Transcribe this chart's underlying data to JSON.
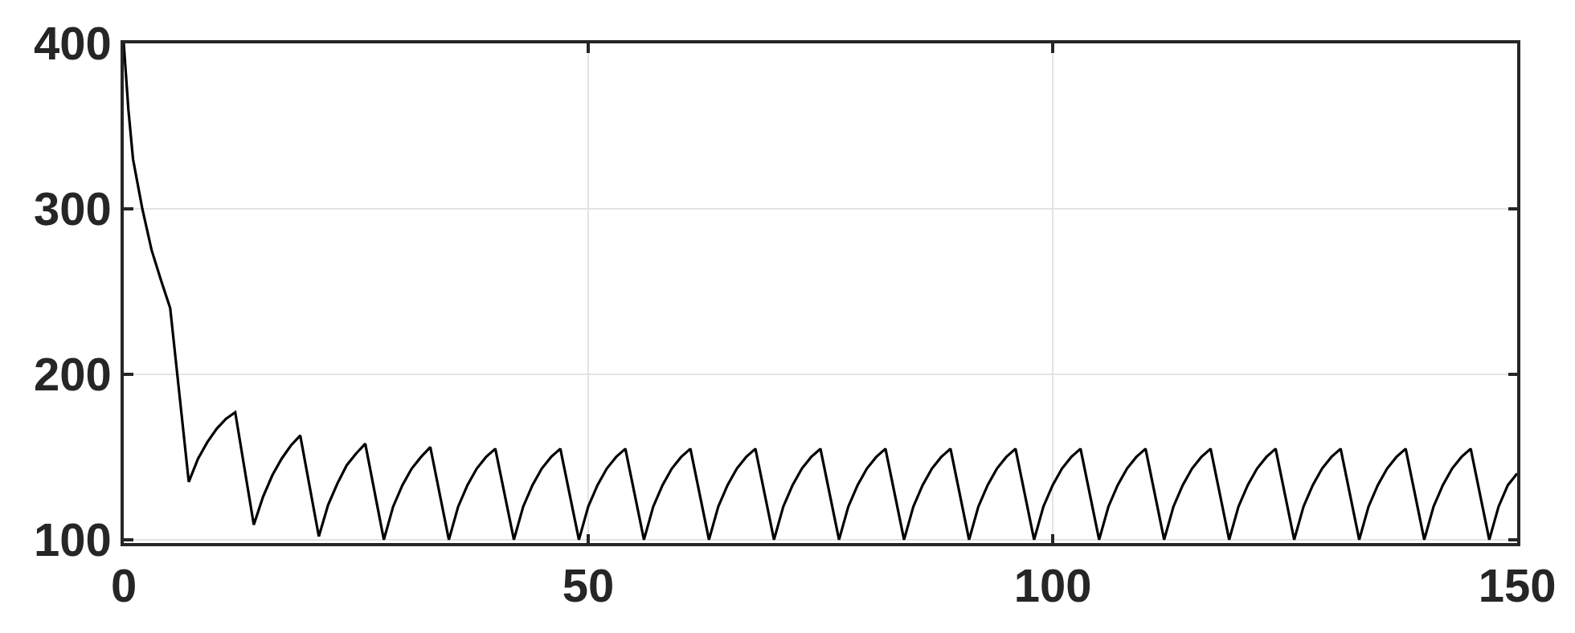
{
  "chart_data": {
    "type": "line",
    "x": [
      0,
      0.5,
      1,
      2,
      3,
      4,
      5,
      7,
      8,
      9,
      10,
      11,
      12,
      14,
      15,
      16,
      17,
      18,
      19,
      21,
      22,
      23,
      24,
      25,
      26,
      28,
      29,
      30,
      31,
      32,
      33,
      35,
      36,
      37,
      38,
      39,
      40,
      42,
      43,
      44,
      45,
      46,
      47,
      49,
      50,
      51,
      52,
      53,
      54,
      56,
      57,
      58,
      59,
      60,
      61,
      63,
      64,
      65,
      66,
      67,
      68,
      70,
      71,
      72,
      73,
      74,
      75,
      77,
      78,
      79,
      80,
      81,
      82,
      84,
      85,
      86,
      87,
      88,
      89,
      91,
      92,
      93,
      94,
      95,
      96,
      98,
      99,
      100,
      101,
      102,
      103,
      105,
      106,
      107,
      108,
      109,
      110,
      112,
      113,
      114,
      115,
      116,
      117,
      119,
      120,
      121,
      122,
      123,
      124,
      126,
      127,
      128,
      129,
      130,
      131,
      133,
      134,
      135,
      136,
      137,
      138,
      140,
      141,
      142,
      143,
      144,
      145,
      147,
      148,
      149,
      150
    ],
    "series": [
      {
        "color": "#000000",
        "values": [
          400,
          360,
          330,
          300,
          275,
          257,
          240,
          135,
          149,
          159,
          167,
          173,
          177,
          109,
          126,
          139,
          149,
          157,
          163,
          102,
          121,
          134,
          145,
          152,
          158,
          100,
          120,
          133,
          143,
          150,
          156,
          100,
          120,
          133,
          143,
          150,
          155,
          100,
          120,
          133,
          143,
          150,
          155,
          100,
          120,
          133,
          143,
          150,
          155,
          100,
          120,
          133,
          143,
          150,
          155,
          100,
          120,
          133,
          143,
          150,
          155,
          100,
          120,
          133,
          143,
          150,
          155,
          100,
          120,
          133,
          143,
          150,
          155,
          100,
          120,
          133,
          143,
          150,
          155,
          100,
          120,
          133,
          143,
          150,
          155,
          100,
          120,
          133,
          143,
          150,
          155,
          100,
          120,
          133,
          143,
          150,
          155,
          100,
          120,
          133,
          143,
          150,
          155,
          100,
          120,
          133,
          143,
          150,
          155,
          100,
          120,
          133,
          143,
          150,
          155,
          100,
          120,
          133,
          143,
          150,
          155,
          100,
          120,
          133,
          143,
          150,
          155,
          100,
          120,
          133,
          140
        ]
      }
    ],
    "xlim": [
      0,
      150
    ],
    "xticks": [
      0,
      50,
      100,
      150
    ],
    "ylim": [
      98,
      400
    ],
    "yticks": [
      100,
      200,
      300,
      400
    ],
    "grid": true,
    "marker": "none",
    "line_style": "solid"
  }
}
